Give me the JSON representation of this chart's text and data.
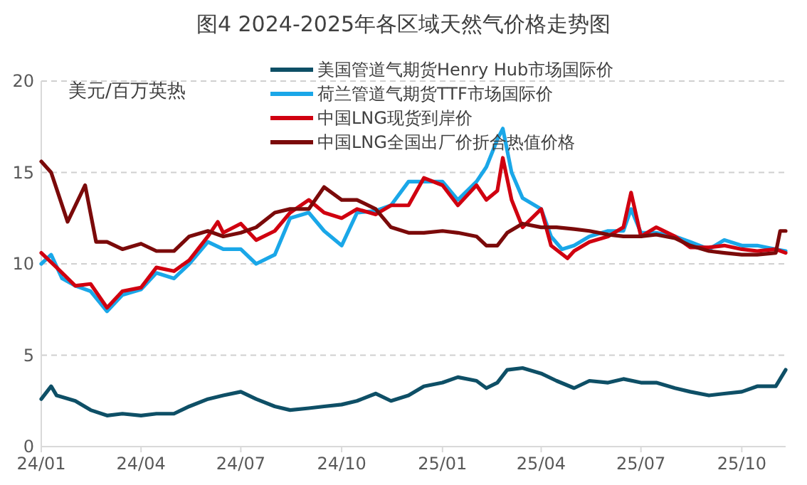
{
  "chart_data": {
    "type": "line",
    "title": "图4 2024-2025年各区域天然气价格走势图",
    "ylabel": "美元/百万英热",
    "xlim": [
      "2024-01-01",
      "2025-11-10"
    ],
    "xticks": [
      {
        "value": "2024-01-01",
        "label": "24/01"
      },
      {
        "value": "2024-04-01",
        "label": "24/04"
      },
      {
        "value": "2024-07-01",
        "label": "24/07"
      },
      {
        "value": "2024-10-01",
        "label": "24/10"
      },
      {
        "value": "2025-01-01",
        "label": "25/01"
      },
      {
        "value": "2025-04-01",
        "label": "25/04"
      },
      {
        "value": "2025-07-01",
        "label": "25/07"
      },
      {
        "value": "2025-10-01",
        "label": "25/10"
      }
    ],
    "ylim": [
      0,
      20
    ],
    "yticks": [
      0,
      5,
      10,
      15,
      20
    ],
    "grid": "y",
    "legend": "top",
    "marker": "none",
    "line_style": "solid",
    "series": [
      {
        "name": "美国管道气期货Henry Hub市场国际价",
        "color": "#0e4f66",
        "x": [
          "2024-01-01",
          "2024-01-10",
          "2024-01-15",
          "2024-02-01",
          "2024-02-15",
          "2024-03-01",
          "2024-03-15",
          "2024-04-01",
          "2024-04-15",
          "2024-05-01",
          "2024-05-15",
          "2024-06-01",
          "2024-06-15",
          "2024-07-01",
          "2024-07-15",
          "2024-08-01",
          "2024-08-15",
          "2024-09-01",
          "2024-09-15",
          "2024-10-01",
          "2024-10-15",
          "2024-11-01",
          "2024-11-15",
          "2024-12-01",
          "2024-12-15",
          "2025-01-01",
          "2025-01-15",
          "2025-02-01",
          "2025-02-10",
          "2025-02-20",
          "2025-03-01",
          "2025-03-15",
          "2025-04-01",
          "2025-04-15",
          "2025-05-01",
          "2025-05-15",
          "2025-06-01",
          "2025-06-15",
          "2025-07-01",
          "2025-07-15",
          "2025-08-01",
          "2025-08-15",
          "2025-09-01",
          "2025-09-15",
          "2025-10-01",
          "2025-10-15",
          "2025-11-01",
          "2025-11-10"
        ],
        "values": [
          2.6,
          3.3,
          2.8,
          2.5,
          2.0,
          1.7,
          1.8,
          1.7,
          1.8,
          1.8,
          2.2,
          2.6,
          2.8,
          3.0,
          2.6,
          2.2,
          2.0,
          2.1,
          2.2,
          2.3,
          2.5,
          2.9,
          2.5,
          2.8,
          3.3,
          3.5,
          3.8,
          3.6,
          3.2,
          3.5,
          4.2,
          4.3,
          4.0,
          3.6,
          3.2,
          3.6,
          3.5,
          3.7,
          3.5,
          3.5,
          3.2,
          3.0,
          2.8,
          2.9,
          3.0,
          3.3,
          3.3,
          4.2
        ]
      },
      {
        "name": "荷兰管道气期货TTF市场国际价",
        "color": "#1aa7e8",
        "x": [
          "2024-01-01",
          "2024-01-10",
          "2024-01-20",
          "2024-02-01",
          "2024-02-15",
          "2024-03-01",
          "2024-03-15",
          "2024-04-01",
          "2024-04-15",
          "2024-05-01",
          "2024-05-15",
          "2024-06-01",
          "2024-06-15",
          "2024-07-01",
          "2024-07-15",
          "2024-08-01",
          "2024-08-15",
          "2024-09-01",
          "2024-09-15",
          "2024-10-01",
          "2024-10-15",
          "2024-11-01",
          "2024-11-15",
          "2024-12-01",
          "2024-12-15",
          "2025-01-01",
          "2025-01-15",
          "2025-02-01",
          "2025-02-10",
          "2025-02-20",
          "2025-02-25",
          "2025-03-05",
          "2025-03-15",
          "2025-04-01",
          "2025-04-10",
          "2025-04-20",
          "2025-05-01",
          "2025-05-15",
          "2025-06-01",
          "2025-06-15",
          "2025-06-22",
          "2025-07-01",
          "2025-07-15",
          "2025-08-01",
          "2025-08-15",
          "2025-09-01",
          "2025-09-15",
          "2025-10-01",
          "2025-10-15",
          "2025-11-01",
          "2025-11-10"
        ],
        "values": [
          10.0,
          10.5,
          9.2,
          8.8,
          8.5,
          7.4,
          8.3,
          8.6,
          9.5,
          9.2,
          10.0,
          11.2,
          10.8,
          10.8,
          10.0,
          10.5,
          12.5,
          12.8,
          11.8,
          11.0,
          12.8,
          12.9,
          13.2,
          14.5,
          14.5,
          14.5,
          13.5,
          14.5,
          15.3,
          16.8,
          17.4,
          15.0,
          13.6,
          13.0,
          11.5,
          10.8,
          11.0,
          11.5,
          11.8,
          11.8,
          13.0,
          11.7,
          11.7,
          11.5,
          11.2,
          10.8,
          11.3,
          11.0,
          11.0,
          10.8,
          10.7
        ]
      },
      {
        "name": "中国LNG现货到岸价",
        "color": "#d00010",
        "x": [
          "2024-01-01",
          "2024-01-15",
          "2024-02-01",
          "2024-02-15",
          "2024-03-01",
          "2024-03-15",
          "2024-04-01",
          "2024-04-15",
          "2024-05-01",
          "2024-05-15",
          "2024-06-01",
          "2024-06-10",
          "2024-06-15",
          "2024-07-01",
          "2024-07-15",
          "2024-08-01",
          "2024-08-15",
          "2024-09-01",
          "2024-09-15",
          "2024-10-01",
          "2024-10-15",
          "2024-11-01",
          "2024-11-15",
          "2024-12-01",
          "2024-12-15",
          "2025-01-01",
          "2025-01-15",
          "2025-02-01",
          "2025-02-10",
          "2025-02-20",
          "2025-02-25",
          "2025-03-05",
          "2025-03-15",
          "2025-04-01",
          "2025-04-10",
          "2025-04-25",
          "2025-05-01",
          "2025-05-15",
          "2025-06-01",
          "2025-06-15",
          "2025-06-22",
          "2025-07-01",
          "2025-07-15",
          "2025-08-01",
          "2025-08-15",
          "2025-09-01",
          "2025-09-15",
          "2025-10-01",
          "2025-10-15",
          "2025-11-01",
          "2025-11-10"
        ],
        "values": [
          10.6,
          9.8,
          8.8,
          8.9,
          7.6,
          8.5,
          8.7,
          9.8,
          9.6,
          10.2,
          11.5,
          12.3,
          11.7,
          12.2,
          11.3,
          11.8,
          12.8,
          13.5,
          12.8,
          12.5,
          13.0,
          12.7,
          13.2,
          13.2,
          14.7,
          14.3,
          13.2,
          14.3,
          13.5,
          14.0,
          15.8,
          13.5,
          12.0,
          13.0,
          11.0,
          10.3,
          10.7,
          11.2,
          11.5,
          12.0,
          13.9,
          11.5,
          12.0,
          11.5,
          10.9,
          10.9,
          11.0,
          10.8,
          10.7,
          10.8,
          10.6
        ]
      },
      {
        "name": "中国LNG全国出厂价折合热值价格",
        "color": "#7b0a0a",
        "x": [
          "2024-01-01",
          "2024-01-10",
          "2024-01-25",
          "2024-02-10",
          "2024-02-20",
          "2024-03-01",
          "2024-03-15",
          "2024-04-01",
          "2024-04-15",
          "2024-05-01",
          "2024-05-15",
          "2024-06-01",
          "2024-06-15",
          "2024-07-01",
          "2024-07-15",
          "2024-08-01",
          "2024-08-15",
          "2024-09-01",
          "2024-09-15",
          "2024-10-01",
          "2024-10-15",
          "2024-11-01",
          "2024-11-15",
          "2024-12-01",
          "2024-12-15",
          "2025-01-01",
          "2025-01-15",
          "2025-02-01",
          "2025-02-10",
          "2025-02-20",
          "2025-03-01",
          "2025-03-15",
          "2025-04-01",
          "2025-04-15",
          "2025-05-01",
          "2025-05-15",
          "2025-06-01",
          "2025-06-15",
          "2025-07-01",
          "2025-07-15",
          "2025-08-01",
          "2025-08-15",
          "2025-09-01",
          "2025-09-15",
          "2025-10-01",
          "2025-10-15",
          "2025-11-01",
          "2025-11-05",
          "2025-11-10"
        ],
        "values": [
          15.6,
          15.0,
          12.3,
          14.3,
          11.2,
          11.2,
          10.8,
          11.1,
          10.7,
          10.7,
          11.5,
          11.8,
          11.5,
          11.7,
          12.0,
          12.8,
          13.0,
          13.0,
          14.2,
          13.5,
          13.5,
          13.0,
          12.0,
          11.7,
          11.7,
          11.8,
          11.7,
          11.5,
          11.0,
          11.0,
          11.7,
          12.2,
          12.0,
          12.0,
          11.9,
          11.8,
          11.6,
          11.5,
          11.5,
          11.6,
          11.4,
          11.0,
          10.7,
          10.6,
          10.5,
          10.5,
          10.6,
          11.8,
          11.8
        ]
      }
    ]
  }
}
